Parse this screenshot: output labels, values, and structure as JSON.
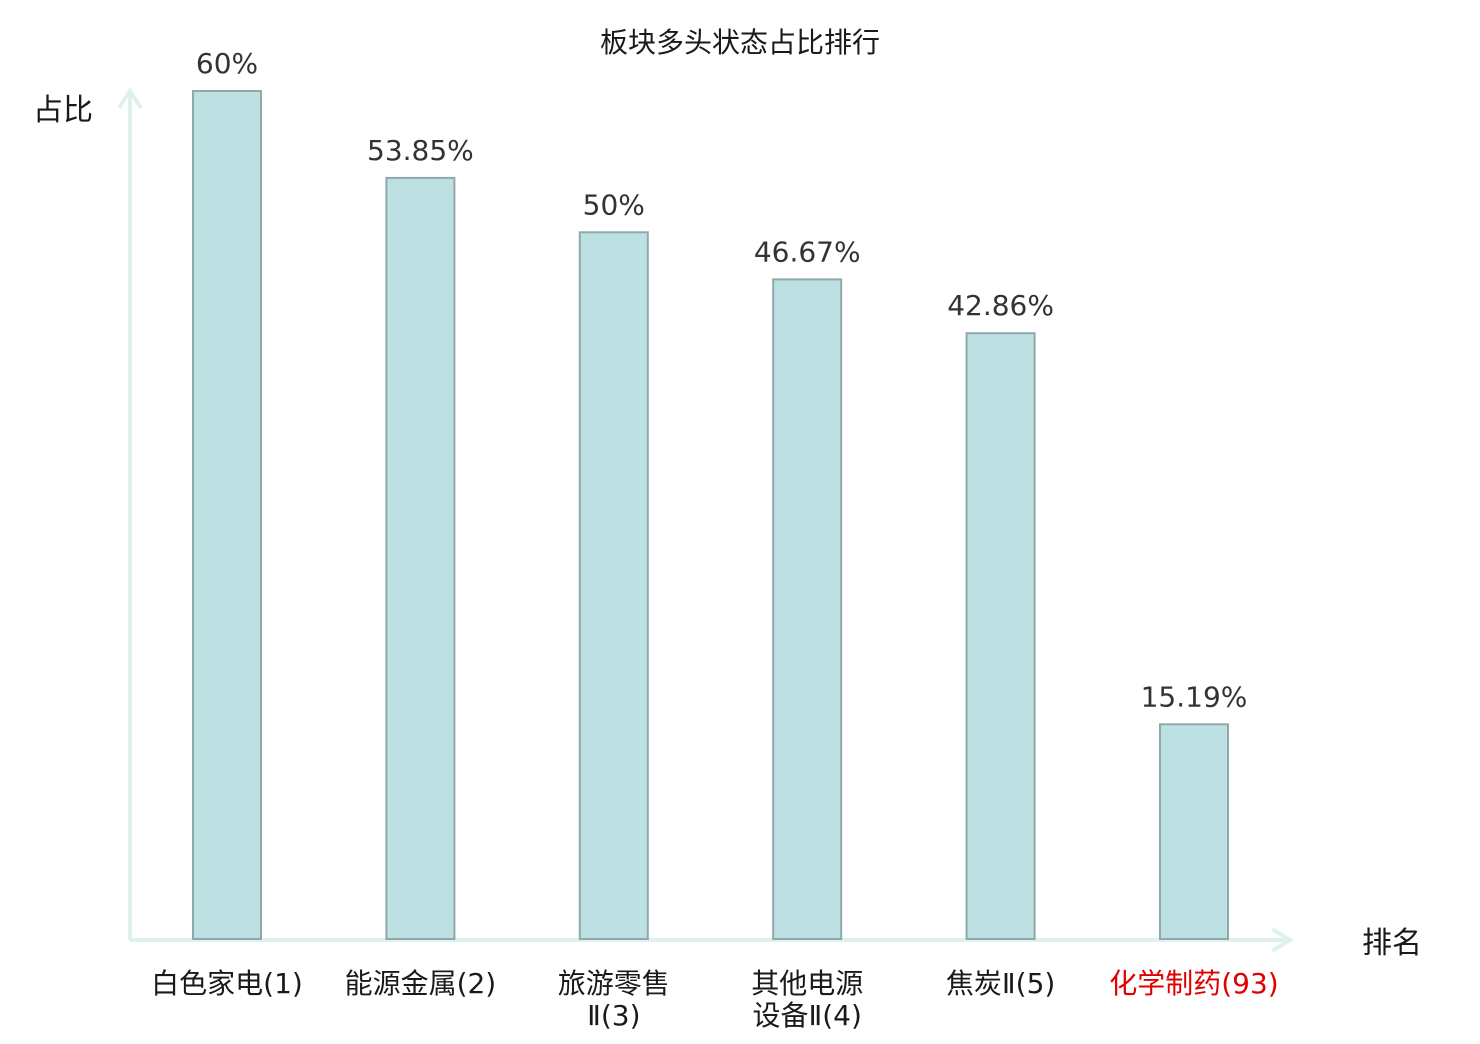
{
  "chart_data": {
    "type": "bar",
    "title": "板块多头状态占比排行",
    "ylabel": "占比",
    "xlabel": "排名",
    "ylim": [
      0,
      60
    ],
    "grid": false,
    "categories": [
      {
        "lines": [
          "白色家电(1)"
        ],
        "highlight": false
      },
      {
        "lines": [
          "能源金属(2)"
        ],
        "highlight": false
      },
      {
        "lines": [
          "旅游零售",
          "Ⅱ(3)"
        ],
        "highlight": false
      },
      {
        "lines": [
          "其他电源",
          "设备Ⅱ(4)"
        ],
        "highlight": false
      },
      {
        "lines": [
          "焦炭Ⅱ(5)"
        ],
        "highlight": false
      },
      {
        "lines": [
          "化学制药(93)"
        ],
        "highlight": true
      }
    ],
    "values": [
      60,
      53.85,
      50,
      46.67,
      42.86,
      15.19
    ],
    "value_labels": [
      "60%",
      "53.85%",
      "50%",
      "46.67%",
      "42.86%",
      "15.19%"
    ],
    "colors": {
      "bar_fill": "#bde0e3",
      "bar_stroke": "#8fa8ab",
      "axis": "#dff1ee",
      "text": "#1a1a1a",
      "value_text": "#333333",
      "highlight_text": "#e00000"
    }
  }
}
